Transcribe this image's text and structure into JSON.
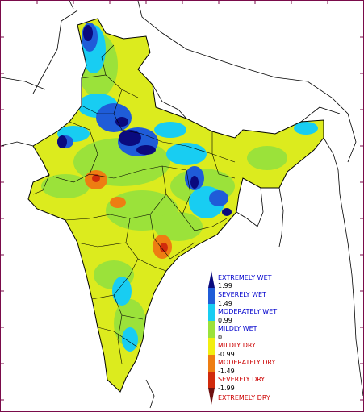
{
  "legend": {
    "categories": [
      {
        "label": "EXTREMELY WET",
        "color": "#0a0a7e"
      },
      {
        "label": "SEVERELY WET",
        "color": "#1f5cd8"
      },
      {
        "label": "MODERATELY WET",
        "color": "#18cdf2"
      },
      {
        "label": "MILDLY WET",
        "color": "#9be23a"
      },
      {
        "label": "MILDLY DRY",
        "color": "#f2ee10"
      },
      {
        "label": "MODERATELY DRY",
        "color": "#ee7d12"
      },
      {
        "label": "SEVERELY DRY",
        "color": "#d12a0c"
      },
      {
        "label": "EXTREMELY DRY",
        "color": "#6e0f0f"
      }
    ],
    "thresholds": [
      "1.99",
      "1.49",
      "0.99",
      "0",
      "-0.99",
      "-1.49",
      "-1.99"
    ]
  },
  "colors": {
    "border": "#7a0b4a",
    "outline": "#000000",
    "wet_text": "#0000cc",
    "dry_text": "#cc0000"
  }
}
